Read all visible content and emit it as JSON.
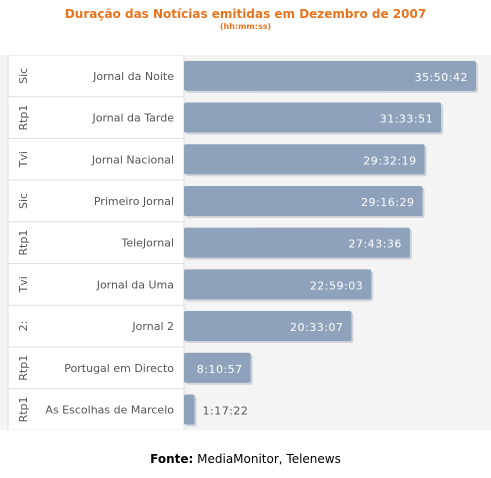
{
  "header": {
    "title": "Duração das Notícias emitidas em Dezembro de 2007",
    "subtitle": "(hh:mm:ss)"
  },
  "footer": {
    "label": "Fonte:",
    "text": "MediaMonitor, Telenews"
  },
  "colors": {
    "bar": "#8fa2bb",
    "title": "#e8741e",
    "label_inside": "#ffffff",
    "label_outside": "#555555"
  },
  "chart_data": {
    "type": "bar",
    "orientation": "horizontal",
    "title": "Duração das Notícias emitidas em Dezembro de 2007",
    "subtitle": "(hh:mm:ss)",
    "unit": "hh:mm:ss",
    "categories": [
      {
        "channel": "Sic",
        "program": "Jornal da Noite"
      },
      {
        "channel": "Rtp1",
        "program": "Jornal da Tarde"
      },
      {
        "channel": "Tvi",
        "program": "Jornal Nacional"
      },
      {
        "channel": "Sic",
        "program": "Primeiro Jornal"
      },
      {
        "channel": "Rtp1",
        "program": "TeleJornal"
      },
      {
        "channel": "Tvi",
        "program": "Jornal da Uma"
      },
      {
        "channel": "2:",
        "program": "Jornal 2"
      },
      {
        "channel": "Rtp1",
        "program": "Portugal em Directo"
      },
      {
        "channel": "Rtp1",
        "program": "As Escolhas de Marcelo"
      }
    ],
    "values": [
      "35:50:42",
      "31:33:51",
      "29:32:19",
      "29:16:29",
      "27:43:36",
      "22:59:03",
      "20:33:07",
      "8:10:57",
      "1:17:22"
    ],
    "grid": false,
    "legend": "none"
  }
}
